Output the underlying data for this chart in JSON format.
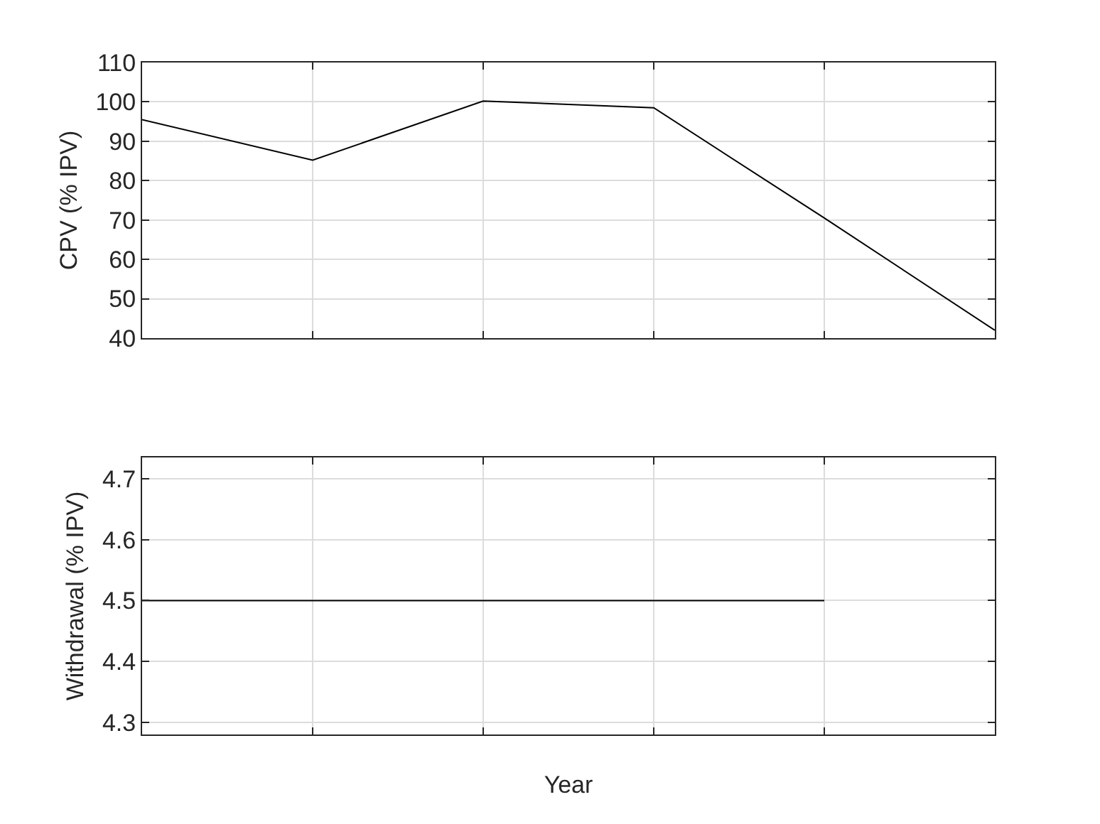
{
  "chart_data": [
    {
      "type": "line",
      "ylabel": "CPV (% IPV)",
      "categories": [
        null,
        null,
        null,
        null,
        null,
        null
      ],
      "series": [
        {
          "color": "#000000",
          "values": [
            95.5,
            85.2,
            100.2,
            98.5,
            70.5,
            42
          ]
        }
      ],
      "ylim": [
        40,
        110
      ],
      "yticks": [
        40,
        50,
        60,
        70,
        80,
        90,
        100,
        110
      ],
      "grid": true,
      "tick_labels": "y"
    },
    {
      "type": "line",
      "xlabel": "Year",
      "ylabel": "Withdrawal (% IPV)",
      "categories": [
        null,
        null,
        null,
        null,
        null,
        null
      ],
      "series": [
        {
          "color": "#000000",
          "values": [
            4.5,
            4.5,
            4.5,
            4.5,
            4.5,
            null
          ]
        }
      ],
      "ylim": [
        4.28,
        4.735
      ],
      "yticks": [
        4.3,
        4.4,
        4.5,
        4.6,
        4.7
      ],
      "grid": true,
      "tick_labels": "y"
    }
  ]
}
